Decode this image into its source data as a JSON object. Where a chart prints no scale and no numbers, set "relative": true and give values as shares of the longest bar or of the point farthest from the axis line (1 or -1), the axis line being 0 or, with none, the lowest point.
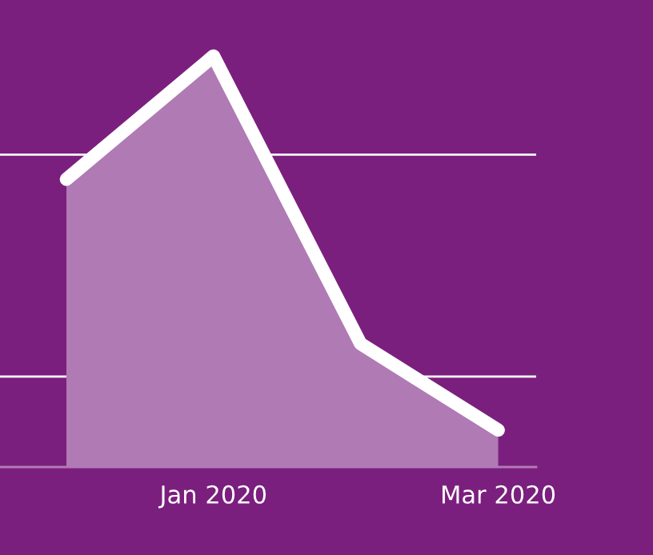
{
  "chart_data": {
    "type": "area",
    "relative": true,
    "x": [
      "2019-12",
      "2020-01",
      "2020-02",
      "2020-03"
    ],
    "xlim": [
      "2019-11-17",
      "2020-03-09"
    ],
    "xticks": [
      {
        "value": "2020-01",
        "label": "Jan 2020"
      },
      {
        "value": "2020-03",
        "label": "Mar 2020"
      }
    ],
    "series": [
      {
        "color": "#b07ab5",
        "values": [
          0.7,
          1.0,
          0.3,
          0.09
        ]
      }
    ],
    "ref_lines": [
      {
        "axis": "y",
        "value": 0.76,
        "color": "#ffffff"
      },
      {
        "axis": "y",
        "value": 0.22,
        "color": "#ffffff"
      }
    ],
    "line_style": "solid",
    "marker": "none",
    "legend": false,
    "grid": false,
    "tick_labels": "x"
  }
}
